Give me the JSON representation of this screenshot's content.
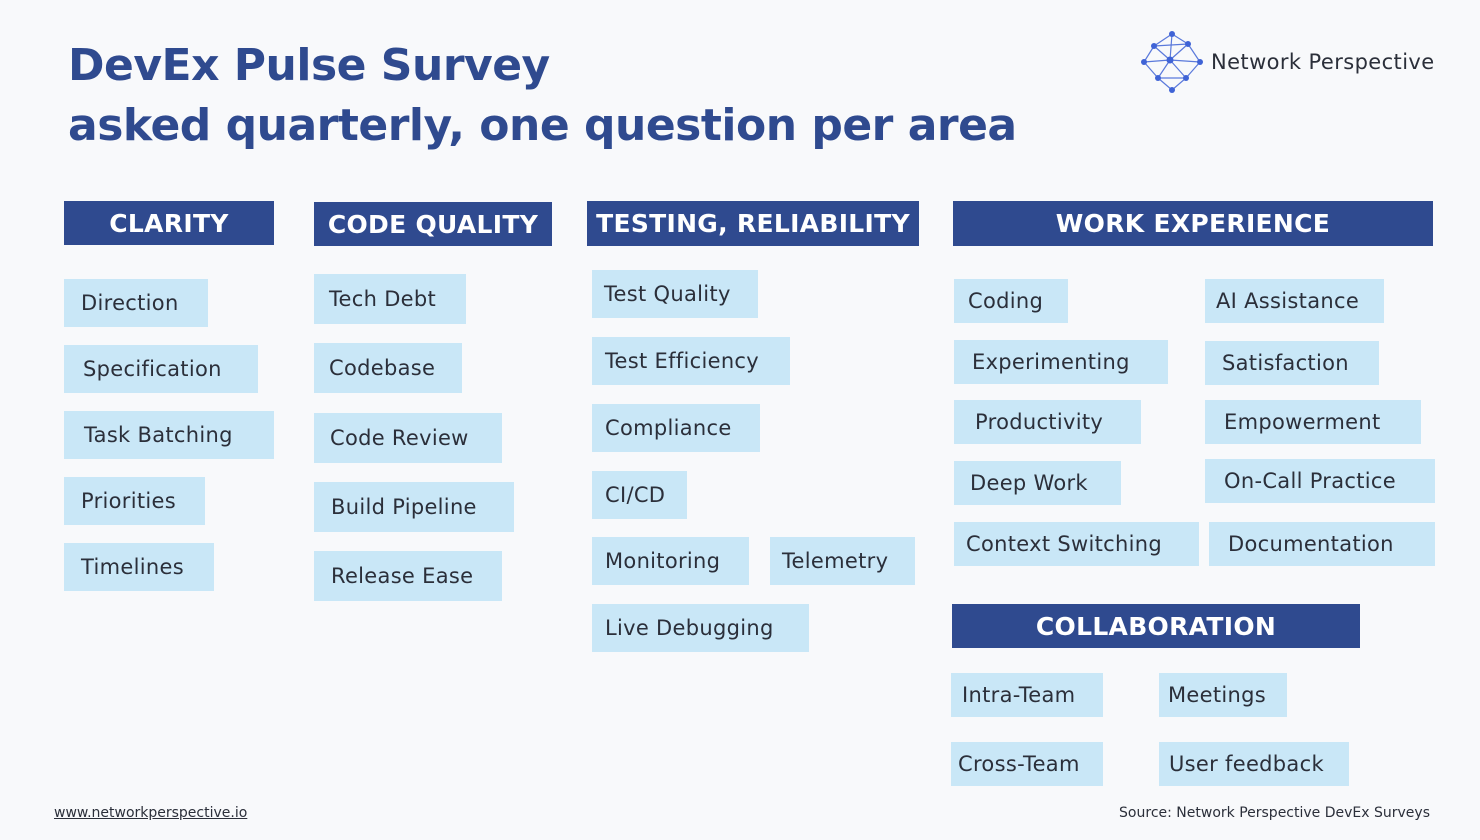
{
  "header": {
    "title_line1": "DevEx Pulse Survey",
    "title_line2": "asked quarterly, one question per area"
  },
  "brand": {
    "name": "Network Perspective",
    "accent_color": "#3f63d6"
  },
  "categories": {
    "clarity": {
      "title": "CLARITY",
      "items": [
        "Direction",
        "Specification",
        "Task Batching",
        "Priorities",
        "Timelines"
      ]
    },
    "code_quality": {
      "title": "CODE QUALITY",
      "items": [
        "Tech Debt",
        "Codebase",
        "Code Review",
        "Build Pipeline",
        "Release Ease"
      ]
    },
    "testing": {
      "title": "TESTING, RELIABILITY",
      "items": [
        "Test Quality",
        "Test Efficiency",
        "Compliance",
        "CI/CD",
        "Monitoring",
        "Telemetry",
        "Live Debugging"
      ]
    },
    "work_experience": {
      "title": "WORK EXPERIENCE",
      "items": [
        "Coding",
        "AI Assistance",
        "Experimenting",
        "Satisfaction",
        "Productivity",
        "Empowerment",
        "Deep Work",
        "On-Call Practice",
        "Context Switching",
        "Documentation"
      ]
    },
    "collaboration": {
      "title": "COLLABORATION",
      "items": [
        "Intra-Team",
        "Meetings",
        "Cross-Team",
        "User feedback"
      ]
    }
  },
  "footer": {
    "url": "www.networkperspective.io",
    "source": "Source: Network Perspective DevEx Surveys"
  },
  "colors": {
    "header_bg": "#2f4a8f",
    "tile_bg": "#c9e7f7",
    "title_text": "#2f4a8f",
    "body_text": "#2b2f3a",
    "page_bg": "#f8f9fb"
  }
}
